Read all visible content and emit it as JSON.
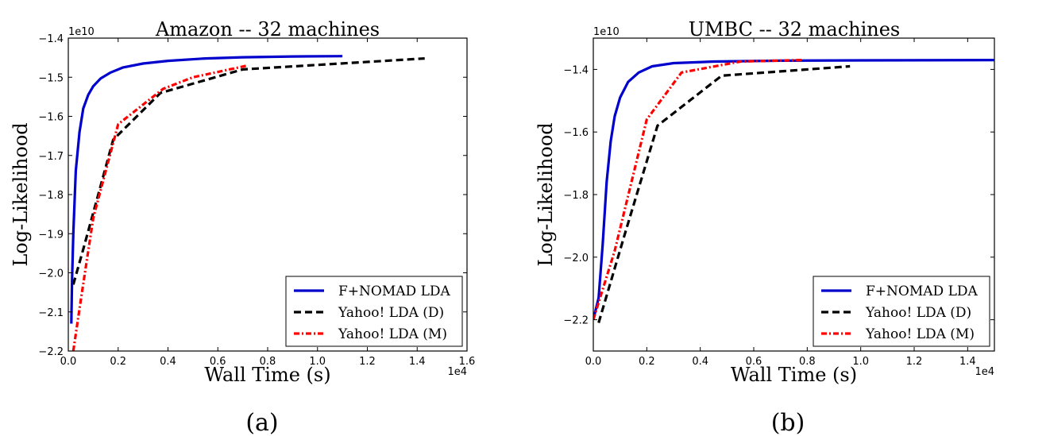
{
  "chart_data": [
    {
      "type": "line",
      "panel_label": "(a)",
      "title": "Amazon -- 32 machines",
      "xlabel": "Wall Time (s)",
      "ylabel": "Log-Likelihood",
      "x_multiplier": "1e4",
      "y_multiplier": "1e10",
      "xlim": [
        0.0,
        1.6
      ],
      "ylim": [
        -2.2,
        -1.4
      ],
      "xticks": [
        "0.0",
        "0.2",
        "0.4",
        "0.6",
        "0.8",
        "1.0",
        "1.2",
        "1.4",
        "1.6"
      ],
      "yticks": [
        "−2.2",
        "−2.1",
        "−2.0",
        "−1.9",
        "−1.8",
        "−1.7",
        "−1.6",
        "−1.5",
        "−1.4"
      ],
      "legend_position": "bottom-right",
      "series": [
        {
          "name": "F+NOMAD LDA",
          "color": "#0000cc",
          "style": "solid",
          "points": [
            [
              0.012,
              -2.13
            ],
            [
              0.015,
              -2.02
            ],
            [
              0.02,
              -1.9
            ],
            [
              0.03,
              -1.74
            ],
            [
              0.045,
              -1.64
            ],
            [
              0.06,
              -1.58
            ],
            [
              0.08,
              -1.545
            ],
            [
              0.1,
              -1.523
            ],
            [
              0.13,
              -1.503
            ],
            [
              0.17,
              -1.488
            ],
            [
              0.22,
              -1.475
            ],
            [
              0.3,
              -1.465
            ],
            [
              0.4,
              -1.458
            ],
            [
              0.55,
              -1.452
            ],
            [
              0.7,
              -1.449
            ],
            [
              0.9,
              -1.447
            ],
            [
              1.1,
              -1.446
            ]
          ]
        },
        {
          "name": "Yahoo! LDA (D)",
          "color": "#000000",
          "style": "dashed",
          "points": [
            [
              0.02,
              -2.03
            ],
            [
              0.06,
              -1.94
            ],
            [
              0.12,
              -1.8
            ],
            [
              0.18,
              -1.66
            ],
            [
              0.37,
              -1.54
            ],
            [
              0.7,
              -1.48
            ],
            [
              1.43,
              -1.452
            ]
          ]
        },
        {
          "name": "Yahoo! LDA (M)",
          "color": "#ff0000",
          "style": "dashdot",
          "points": [
            [
              0.02,
              -2.2
            ],
            [
              0.05,
              -2.07
            ],
            [
              0.1,
              -1.86
            ],
            [
              0.2,
              -1.62
            ],
            [
              0.38,
              -1.53
            ],
            [
              0.5,
              -1.5
            ],
            [
              0.72,
              -1.47
            ]
          ]
        }
      ]
    },
    {
      "type": "line",
      "panel_label": "(b)",
      "title": "UMBC -- 32 machines",
      "xlabel": "Wall Time (s)",
      "ylabel": "Log-Likelihood",
      "x_multiplier": "1e4",
      "y_multiplier": "1e10",
      "xlim": [
        0.0,
        1.5
      ],
      "ylim": [
        -2.3,
        -1.3
      ],
      "xticks": [
        "0.0",
        "0.2",
        "0.4",
        "0.6",
        "0.8",
        "1.0",
        "1.2",
        "1.4"
      ],
      "yticks": [
        "−2.2",
        "−2.0",
        "−1.8",
        "−1.6",
        "−1.4"
      ],
      "legend_position": "bottom-right",
      "series": [
        {
          "name": "F+NOMAD LDA",
          "color": "#0000cc",
          "style": "solid",
          "points": [
            [
              0.0,
              -2.2
            ],
            [
              0.02,
              -2.13
            ],
            [
              0.035,
              -1.96
            ],
            [
              0.05,
              -1.76
            ],
            [
              0.065,
              -1.63
            ],
            [
              0.08,
              -1.55
            ],
            [
              0.1,
              -1.49
            ],
            [
              0.13,
              -1.44
            ],
            [
              0.17,
              -1.41
            ],
            [
              0.22,
              -1.39
            ],
            [
              0.3,
              -1.38
            ],
            [
              0.45,
              -1.375
            ],
            [
              0.7,
              -1.372
            ],
            [
              1.0,
              -1.371
            ],
            [
              1.5,
              -1.37
            ]
          ]
        },
        {
          "name": "Yahoo! LDA (D)",
          "color": "#000000",
          "style": "dashed",
          "points": [
            [
              0.02,
              -2.21
            ],
            [
              0.12,
              -1.92
            ],
            [
              0.24,
              -1.58
            ],
            [
              0.48,
              -1.42
            ],
            [
              0.96,
              -1.39
            ]
          ]
        },
        {
          "name": "Yahoo! LDA (M)",
          "color": "#ff0000",
          "style": "dashdot",
          "points": [
            [
              0.0,
              -2.2
            ],
            [
              0.08,
              -1.98
            ],
            [
              0.2,
              -1.56
            ],
            [
              0.33,
              -1.41
            ],
            [
              0.55,
              -1.375
            ],
            [
              0.78,
              -1.37
            ]
          ]
        }
      ]
    }
  ]
}
